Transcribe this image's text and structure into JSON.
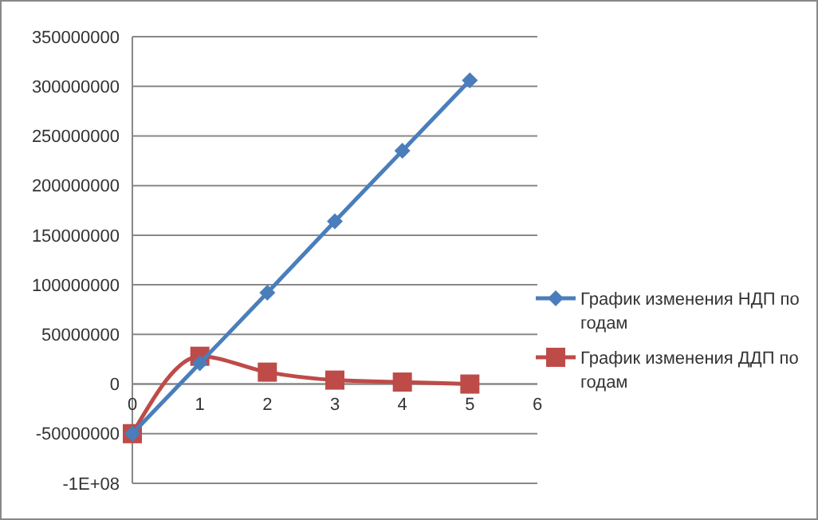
{
  "chart_data": {
    "type": "line",
    "x": [
      0,
      1,
      2,
      3,
      4,
      5
    ],
    "series": [
      {
        "name": "График изменения НДП по годам",
        "color": "#4a7ebb",
        "marker": "diamond",
        "values": [
          -50000000,
          21000000,
          92000000,
          164000000,
          235000000,
          306000000
        ]
      },
      {
        "name": "График изменения ДДП по годам",
        "color": "#be4b48",
        "marker": "square",
        "values": [
          -50000000,
          28000000,
          12000000,
          4000000,
          2000000,
          0
        ]
      }
    ],
    "xlim": [
      0,
      6
    ],
    "xticks": [
      0,
      1,
      2,
      3,
      4,
      5,
      6
    ],
    "ylim": [
      -100000000,
      350000000
    ],
    "yticks": [
      {
        "value": -100000000,
        "label": "-1E+08"
      },
      -50000000,
      0,
      50000000,
      100000000,
      150000000,
      200000000,
      250000000,
      300000000,
      350000000
    ],
    "grid": "y",
    "legend": "right",
    "line_style": "solid"
  }
}
